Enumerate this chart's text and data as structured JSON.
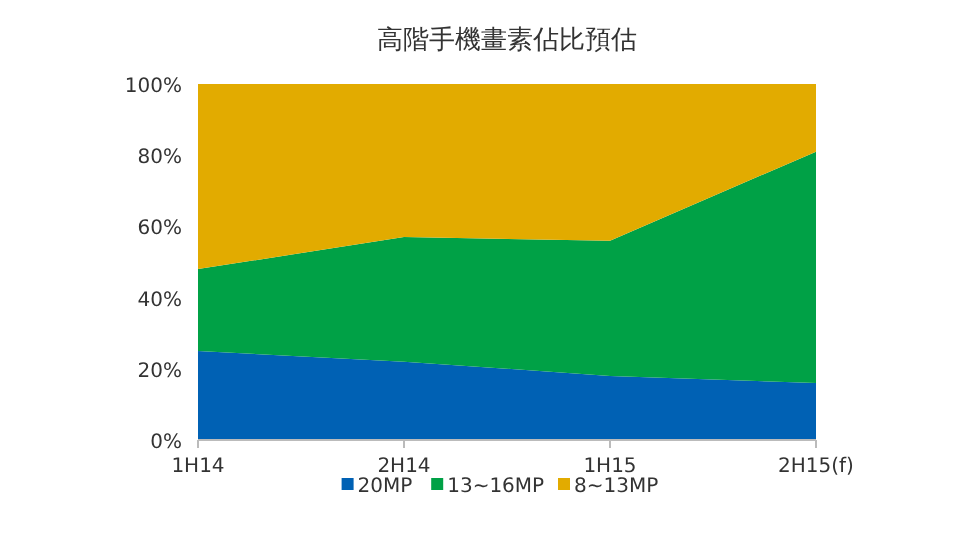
{
  "chart_data": {
    "type": "area",
    "stacked": true,
    "title": "高階手機畫素佔比預估",
    "categories": [
      "1H14",
      "2H14",
      "1H15",
      "2H15(f)"
    ],
    "series": [
      {
        "name": "20MP",
        "color": "#0061b4",
        "values": [
          25,
          22,
          18,
          16
        ]
      },
      {
        "name": "13~16MP",
        "color": "#00a146",
        "values": [
          23,
          35,
          38,
          65
        ]
      },
      {
        "name": "8~13MP",
        "color": "#e2ab00",
        "values": [
          52,
          43,
          44,
          19
        ]
      }
    ],
    "ylim": [
      0,
      100
    ],
    "yticks": [
      {
        "value": 0,
        "label": "0%"
      },
      {
        "value": 20,
        "label": "20%"
      },
      {
        "value": 40,
        "label": "40%"
      },
      {
        "value": 60,
        "label": "60%"
      },
      {
        "value": 80,
        "label": "80%"
      },
      {
        "value": 100,
        "label": "100%"
      }
    ],
    "grid": false,
    "legend": "bottom"
  }
}
